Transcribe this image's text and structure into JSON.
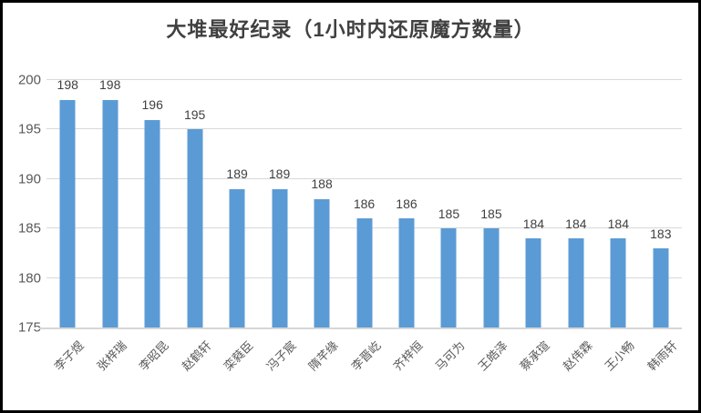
{
  "chart_data": {
    "type": "bar",
    "title": "大堆最好纪录（1小时内还原魔方数量）",
    "categories": [
      "李子煜",
      "张梓瑞",
      "李昭昆",
      "赵鹤轩",
      "栾蕤臣",
      "冯子宸",
      "隋芊缘",
      "李晋屹",
      "齐梓恒",
      "马可为",
      "王皓泽",
      "蔡承瑄",
      "赵伟霖",
      "王小畅",
      "韩雨轩"
    ],
    "values": [
      198,
      198,
      196,
      195,
      189,
      189,
      188,
      186,
      186,
      185,
      185,
      184,
      184,
      184,
      183
    ],
    "xlabel": "",
    "ylabel": "",
    "ylim": [
      175,
      200
    ],
    "yticks": [
      175,
      180,
      185,
      190,
      195,
      200
    ],
    "grid": true,
    "legend": "none",
    "data_labels": true
  },
  "colors": {
    "bar": "#5B9BD5",
    "gridline": "#D9D9D9",
    "axis_line": "#D6D6D6",
    "title_text": "#404040",
    "tick_text": "#595959",
    "value_label_text": "#404040",
    "frame": "#000000",
    "background": "#FFFFFF"
  }
}
